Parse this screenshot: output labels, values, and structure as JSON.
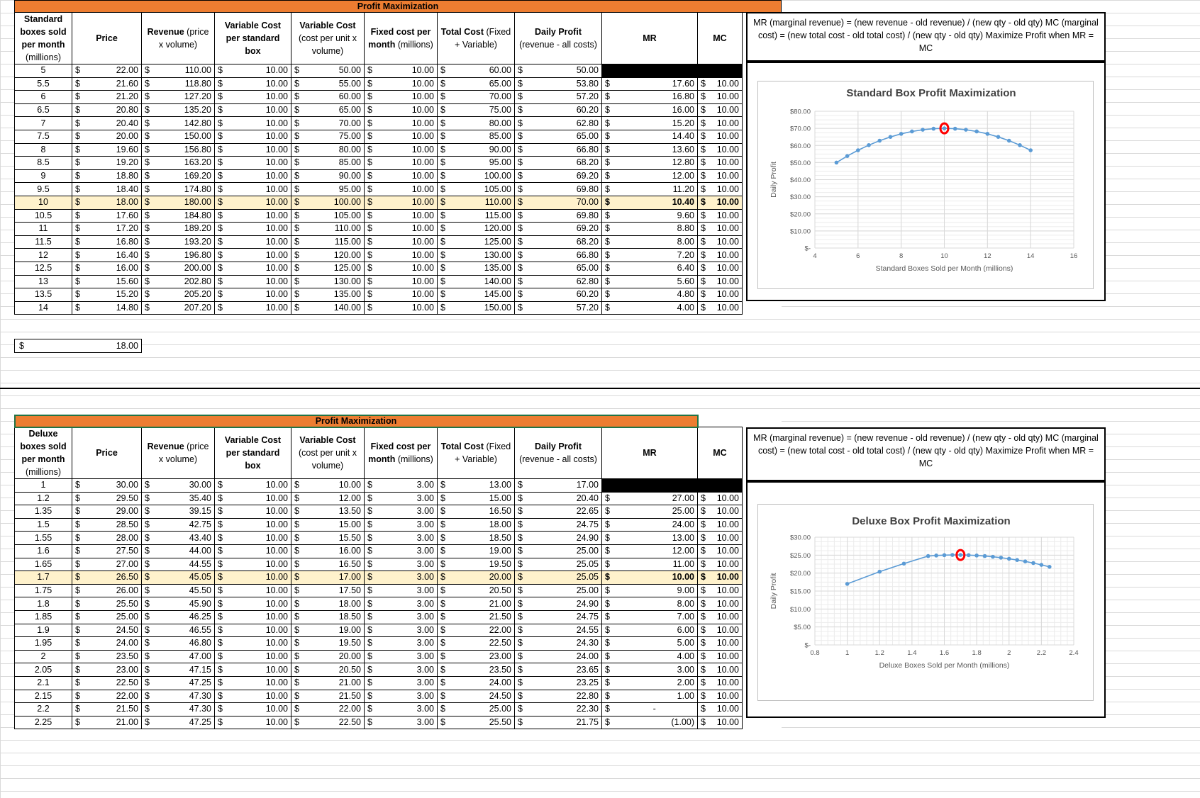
{
  "standard": {
    "title": "Profit Maximization",
    "headers": [
      {
        "bold": "Standard boxes sold per month",
        "norm": "(millions)"
      },
      {
        "bold": "Price",
        "norm": ""
      },
      {
        "bold": "Revenue",
        "norm": " (price x volume)"
      },
      {
        "bold": "Variable Cost per standard box",
        "norm": ""
      },
      {
        "bold": "Variable Cost",
        "norm": " (cost per unit x volume)"
      },
      {
        "bold": "Fixed cost per month",
        "norm": " (millions)"
      },
      {
        "bold": "Total Cost",
        "norm": " (Fixed + Variable)"
      },
      {
        "bold": "Daily Profit",
        "norm": " (revenue - all costs)"
      },
      {
        "bold": "MR",
        "norm": ""
      },
      {
        "bold": "MC",
        "norm": ""
      }
    ],
    "rows": [
      [
        "5",
        "22.00",
        "110.00",
        "10.00",
        "50.00",
        "10.00",
        "60.00",
        "50.00",
        "",
        ""
      ],
      [
        "5.5",
        "21.60",
        "118.80",
        "10.00",
        "55.00",
        "10.00",
        "65.00",
        "53.80",
        "17.60",
        "10.00"
      ],
      [
        "6",
        "21.20",
        "127.20",
        "10.00",
        "60.00",
        "10.00",
        "70.00",
        "57.20",
        "16.80",
        "10.00"
      ],
      [
        "6.5",
        "20.80",
        "135.20",
        "10.00",
        "65.00",
        "10.00",
        "75.00",
        "60.20",
        "16.00",
        "10.00"
      ],
      [
        "7",
        "20.40",
        "142.80",
        "10.00",
        "70.00",
        "10.00",
        "80.00",
        "62.80",
        "15.20",
        "10.00"
      ],
      [
        "7.5",
        "20.00",
        "150.00",
        "10.00",
        "75.00",
        "10.00",
        "85.00",
        "65.00",
        "14.40",
        "10.00"
      ],
      [
        "8",
        "19.60",
        "156.80",
        "10.00",
        "80.00",
        "10.00",
        "90.00",
        "66.80",
        "13.60",
        "10.00"
      ],
      [
        "8.5",
        "19.20",
        "163.20",
        "10.00",
        "85.00",
        "10.00",
        "95.00",
        "68.20",
        "12.80",
        "10.00"
      ],
      [
        "9",
        "18.80",
        "169.20",
        "10.00",
        "90.00",
        "10.00",
        "100.00",
        "69.20",
        "12.00",
        "10.00"
      ],
      [
        "9.5",
        "18.40",
        "174.80",
        "10.00",
        "95.00",
        "10.00",
        "105.00",
        "69.80",
        "11.20",
        "10.00"
      ],
      [
        "10",
        "18.00",
        "180.00",
        "10.00",
        "100.00",
        "10.00",
        "110.00",
        "70.00",
        "10.40",
        "10.00"
      ],
      [
        "10.5",
        "17.60",
        "184.80",
        "10.00",
        "105.00",
        "10.00",
        "115.00",
        "69.80",
        "9.60",
        "10.00"
      ],
      [
        "11",
        "17.20",
        "189.20",
        "10.00",
        "110.00",
        "10.00",
        "120.00",
        "69.20",
        "8.80",
        "10.00"
      ],
      [
        "11.5",
        "16.80",
        "193.20",
        "10.00",
        "115.00",
        "10.00",
        "125.00",
        "68.20",
        "8.00",
        "10.00"
      ],
      [
        "12",
        "16.40",
        "196.80",
        "10.00",
        "120.00",
        "10.00",
        "130.00",
        "66.80",
        "7.20",
        "10.00"
      ],
      [
        "12.5",
        "16.00",
        "200.00",
        "10.00",
        "125.00",
        "10.00",
        "135.00",
        "65.00",
        "6.40",
        "10.00"
      ],
      [
        "13",
        "15.60",
        "202.80",
        "10.00",
        "130.00",
        "10.00",
        "140.00",
        "62.80",
        "5.60",
        "10.00"
      ],
      [
        "13.5",
        "15.20",
        "205.20",
        "10.00",
        "135.00",
        "10.00",
        "145.00",
        "60.20",
        "4.80",
        "10.00"
      ],
      [
        "14",
        "14.80",
        "207.20",
        "10.00",
        "140.00",
        "10.00",
        "150.00",
        "57.20",
        "4.00",
        "10.00"
      ]
    ],
    "highlight_row": 10,
    "price_cell": {
      "sign": "$",
      "value": "18.00"
    },
    "note": "MR (marginal revenue) = (new revenue - old revenue) / (new qty - old qty)          MC (marginal cost) = (new total cost - old total cost) / (new qty - old qty)     Maximize Profit when MR = MC"
  },
  "deluxe": {
    "title": "Profit Maximization",
    "headers": [
      {
        "bold": "Deluxe boxes sold per month",
        "norm": "(millions)"
      },
      {
        "bold": "Price",
        "norm": ""
      },
      {
        "bold": "Revenue",
        "norm": " (price x volume)"
      },
      {
        "bold": "Variable Cost per standard box",
        "norm": ""
      },
      {
        "bold": "Variable Cost",
        "norm": " (cost per unit x volume)"
      },
      {
        "bold": "Fixed cost per month",
        "norm": " (millions)"
      },
      {
        "bold": "Total Cost",
        "norm": " (Fixed + Variable)"
      },
      {
        "bold": "Daily Profit",
        "norm": " (revenue - all costs)"
      },
      {
        "bold": "MR",
        "norm": ""
      },
      {
        "bold": "MC",
        "norm": ""
      }
    ],
    "rows": [
      [
        "1",
        "30.00",
        "30.00",
        "10.00",
        "10.00",
        "3.00",
        "13.00",
        "17.00",
        "",
        ""
      ],
      [
        "1.2",
        "29.50",
        "35.40",
        "10.00",
        "12.00",
        "3.00",
        "15.00",
        "20.40",
        "27.00",
        "10.00"
      ],
      [
        "1.35",
        "29.00",
        "39.15",
        "10.00",
        "13.50",
        "3.00",
        "16.50",
        "22.65",
        "25.00",
        "10.00"
      ],
      [
        "1.5",
        "28.50",
        "42.75",
        "10.00",
        "15.00",
        "3.00",
        "18.00",
        "24.75",
        "24.00",
        "10.00"
      ],
      [
        "1.55",
        "28.00",
        "43.40",
        "10.00",
        "15.50",
        "3.00",
        "18.50",
        "24.90",
        "13.00",
        "10.00"
      ],
      [
        "1.6",
        "27.50",
        "44.00",
        "10.00",
        "16.00",
        "3.00",
        "19.00",
        "25.00",
        "12.00",
        "10.00"
      ],
      [
        "1.65",
        "27.00",
        "44.55",
        "10.00",
        "16.50",
        "3.00",
        "19.50",
        "25.05",
        "11.00",
        "10.00"
      ],
      [
        "1.7",
        "26.50",
        "45.05",
        "10.00",
        "17.00",
        "3.00",
        "20.00",
        "25.05",
        "10.00",
        "10.00"
      ],
      [
        "1.75",
        "26.00",
        "45.50",
        "10.00",
        "17.50",
        "3.00",
        "20.50",
        "25.00",
        "9.00",
        "10.00"
      ],
      [
        "1.8",
        "25.50",
        "45.90",
        "10.00",
        "18.00",
        "3.00",
        "21.00",
        "24.90",
        "8.00",
        "10.00"
      ],
      [
        "1.85",
        "25.00",
        "46.25",
        "10.00",
        "18.50",
        "3.00",
        "21.50",
        "24.75",
        "7.00",
        "10.00"
      ],
      [
        "1.9",
        "24.50",
        "46.55",
        "10.00",
        "19.00",
        "3.00",
        "22.00",
        "24.55",
        "6.00",
        "10.00"
      ],
      [
        "1.95",
        "24.00",
        "46.80",
        "10.00",
        "19.50",
        "3.00",
        "22.50",
        "24.30",
        "5.00",
        "10.00"
      ],
      [
        "2",
        "23.50",
        "47.00",
        "10.00",
        "20.00",
        "3.00",
        "23.00",
        "24.00",
        "4.00",
        "10.00"
      ],
      [
        "2.05",
        "23.00",
        "47.15",
        "10.00",
        "20.50",
        "3.00",
        "23.50",
        "23.65",
        "3.00",
        "10.00"
      ],
      [
        "2.1",
        "22.50",
        "47.25",
        "10.00",
        "21.00",
        "3.00",
        "24.00",
        "23.25",
        "2.00",
        "10.00"
      ],
      [
        "2.15",
        "22.00",
        "47.30",
        "10.00",
        "21.50",
        "3.00",
        "24.50",
        "22.80",
        "1.00",
        "10.00"
      ],
      [
        "2.2",
        "21.50",
        "47.30",
        "10.00",
        "22.00",
        "3.00",
        "25.00",
        "22.30",
        "-",
        "10.00"
      ],
      [
        "2.25",
        "21.00",
        "47.25",
        "10.00",
        "22.50",
        "3.00",
        "25.50",
        "21.75",
        "(1.00)",
        "10.00"
      ]
    ],
    "highlight_row": 7,
    "note": "MR (marginal revenue) = (new revenue - old revenue) / (new qty - old qty)          MC (marginal cost) = (new total cost - old total cost) / (new qty - old qty)     Maximize Profit when MR = MC"
  },
  "currency_sign": "$",
  "chart_data": [
    {
      "type": "scatter",
      "title": "Standard Box Profit Maximization",
      "xlabel": "Standard Boxes Sold per Month (millions)",
      "ylabel": "Daily Profit",
      "x": [
        5,
        5.5,
        6,
        6.5,
        7,
        7.5,
        8,
        8.5,
        9,
        9.5,
        10,
        10.5,
        11,
        11.5,
        12,
        12.5,
        13,
        13.5,
        14
      ],
      "y": [
        50,
        53.8,
        57.2,
        60.2,
        62.8,
        65,
        66.8,
        68.2,
        69.2,
        69.8,
        70,
        69.8,
        69.2,
        68.2,
        66.8,
        65,
        62.8,
        60.2,
        57.2
      ],
      "xlim": [
        4,
        16
      ],
      "ylim": [
        0,
        80
      ],
      "x_ticks": [
        "4",
        "6",
        "8",
        "10",
        "12",
        "14",
        "16"
      ],
      "y_ticks": [
        "$-",
        "$10.00",
        "$20.00",
        "$30.00",
        "$40.00",
        "$50.00",
        "$60.00",
        "$70.00",
        "$80.00"
      ],
      "highlight_point": {
        "x": 10,
        "y": 70
      },
      "series_color": "#5b9bd5",
      "marker_color": "#ff0000"
    },
    {
      "type": "scatter",
      "title": "Deluxe Box Profit Maximization",
      "xlabel": "Deluxe Boxes Sold per Month (millions)",
      "ylabel": "Daily Profit",
      "x": [
        1,
        1.2,
        1.35,
        1.5,
        1.55,
        1.6,
        1.65,
        1.7,
        1.75,
        1.8,
        1.85,
        1.9,
        1.95,
        2,
        2.05,
        2.1,
        2.15,
        2.2,
        2.25
      ],
      "y": [
        17,
        20.4,
        22.65,
        24.75,
        24.9,
        25,
        25.05,
        25.05,
        25,
        24.9,
        24.75,
        24.55,
        24.3,
        24,
        23.65,
        23.25,
        22.8,
        22.3,
        21.75
      ],
      "xlim": [
        0.8,
        2.4
      ],
      "ylim": [
        0,
        30
      ],
      "x_ticks": [
        "0.8",
        "1",
        "1.2",
        "1.4",
        "1.6",
        "1.8",
        "2",
        "2.2",
        "2.4"
      ],
      "y_ticks": [
        "$-",
        "$5.00",
        "$10.00",
        "$15.00",
        "$20.00",
        "$25.00",
        "$30.00"
      ],
      "highlight_point": {
        "x": 1.7,
        "y": 25.05
      },
      "series_color": "#5b9bd5",
      "marker_color": "#ff0000"
    }
  ]
}
